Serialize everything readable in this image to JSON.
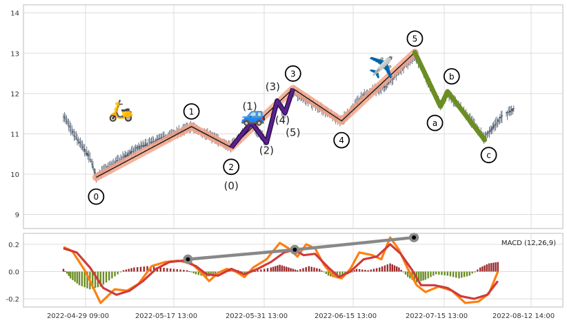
{
  "chart_data": [
    {
      "type": "candlestick",
      "panel": "price",
      "grid": true,
      "ylim": [
        8.65,
        14.2
      ],
      "y_ticks": [
        9,
        10,
        11,
        12,
        13,
        14
      ],
      "x_tick_labels": [
        "2022-04-29 09:00",
        "2022-05-17 13:00",
        "2022-05-31 13:00",
        "2022-06-15 13:00",
        "2022-07-15 13:00",
        "2022-08-12 14:00"
      ],
      "candle_color": "#475569",
      "elliott_wave": {
        "color": "#f4a58a",
        "points": [
          {
            "label": "0",
            "x": 0.12,
            "y": 9.92
          },
          {
            "label": "1",
            "x": 1.2,
            "y": 11.18
          },
          {
            "label": "2",
            "x": 1.65,
            "y": 10.66
          },
          {
            "label": "3",
            "x": 2.35,
            "y": 12.12
          },
          {
            "label": "4",
            "x": 2.9,
            "y": 11.32
          },
          {
            "label": "5",
            "x": 3.73,
            "y": 13.02
          }
        ]
      },
      "sub_wave": {
        "color": "#5b1f8f",
        "points": [
          {
            "label": "",
            "x": 1.65,
            "y": 10.66
          },
          {
            "label": "(1)",
            "x": 1.88,
            "y": 11.28
          },
          {
            "label": "(2)",
            "x": 2.05,
            "y": 10.78
          },
          {
            "label": "(3)",
            "x": 2.17,
            "y": 11.82
          },
          {
            "label": "(4)",
            "x": 2.26,
            "y": 11.52
          },
          {
            "label": "(5)",
            "x": 2.35,
            "y": 12.12
          }
        ]
      },
      "correction_wave": {
        "color": "#6b8e23",
        "points": [
          {
            "label": "5",
            "x": 3.73,
            "y": 13.02
          },
          {
            "label": "a",
            "x": 4.02,
            "y": 11.68
          },
          {
            "label": "b",
            "x": 4.1,
            "y": 12.05
          },
          {
            "label": "c",
            "x": 4.52,
            "y": 10.85
          }
        ]
      },
      "icons": [
        {
          "name": "scooter",
          "glyph": "🛵",
          "x": 0.4,
          "y": 11.55
        },
        {
          "name": "car",
          "glyph": "🚙",
          "x": 1.9,
          "y": 11.45
        },
        {
          "name": "airplane",
          "glyph": "✈️",
          "x": 3.35,
          "y": 12.62
        }
      ]
    },
    {
      "type": "macd",
      "panel": "indicator",
      "legend": "MACD (12,26,9)",
      "legend_position": "top-right",
      "grid": true,
      "ylim": [
        -0.26,
        0.28
      ],
      "y_ticks": [
        -0.2,
        0.0,
        0.2
      ],
      "macd_line": {
        "color": "#ff7f0e",
        "points": [
          [
            0,
            0.18
          ],
          [
            0.1,
            0.15
          ],
          [
            0.25,
            0.0
          ],
          [
            0.42,
            -0.23
          ],
          [
            0.58,
            -0.13
          ],
          [
            0.72,
            -0.14
          ],
          [
            0.85,
            -0.09
          ],
          [
            1.0,
            0.04
          ],
          [
            1.15,
            0.07
          ],
          [
            1.3,
            0.08
          ],
          [
            1.45,
            0.06
          ],
          [
            1.55,
            0.0
          ],
          [
            1.65,
            -0.07
          ],
          [
            1.75,
            -0.01
          ],
          [
            1.85,
            0.02
          ],
          [
            1.95,
            0.0
          ],
          [
            2.05,
            -0.04
          ],
          [
            2.15,
            0.03
          ],
          [
            2.3,
            0.09
          ],
          [
            2.45,
            0.21
          ],
          [
            2.55,
            0.17
          ],
          [
            2.65,
            0.11
          ],
          [
            2.75,
            0.2
          ],
          [
            2.85,
            0.17
          ],
          [
            2.95,
            0.05
          ],
          [
            3.05,
            -0.03
          ],
          [
            3.15,
            -0.05
          ],
          [
            3.25,
            0.02
          ],
          [
            3.35,
            0.14
          ],
          [
            3.5,
            0.12
          ],
          [
            3.6,
            0.09
          ],
          [
            3.7,
            0.25
          ],
          [
            3.8,
            0.16
          ],
          [
            3.9,
            0.02
          ],
          [
            4.0,
            -0.1
          ],
          [
            4.1,
            -0.15
          ],
          [
            4.25,
            -0.11
          ],
          [
            4.4,
            -0.14
          ],
          [
            4.55,
            -0.23
          ],
          [
            4.7,
            -0.22
          ],
          [
            4.82,
            -0.16
          ],
          [
            4.92,
            0.0
          ]
        ]
      },
      "signal_line": {
        "color": "#d03a3a",
        "points": [
          [
            0,
            0.17
          ],
          [
            0.15,
            0.14
          ],
          [
            0.3,
            0.03
          ],
          [
            0.45,
            -0.12
          ],
          [
            0.6,
            -0.17
          ],
          [
            0.75,
            -0.14
          ],
          [
            0.9,
            -0.07
          ],
          [
            1.05,
            0.02
          ],
          [
            1.2,
            0.07
          ],
          [
            1.35,
            0.08
          ],
          [
            1.5,
            0.04
          ],
          [
            1.62,
            -0.02
          ],
          [
            1.75,
            -0.03
          ],
          [
            1.9,
            0.02
          ],
          [
            2.05,
            -0.02
          ],
          [
            2.2,
            0.02
          ],
          [
            2.35,
            0.07
          ],
          [
            2.5,
            0.14
          ],
          [
            2.62,
            0.16
          ],
          [
            2.72,
            0.12
          ],
          [
            2.85,
            0.13
          ],
          [
            3.0,
            0.03
          ],
          [
            3.12,
            -0.04
          ],
          [
            3.25,
            0.0
          ],
          [
            3.4,
            0.09
          ],
          [
            3.55,
            0.11
          ],
          [
            3.7,
            0.2
          ],
          [
            3.82,
            0.13
          ],
          [
            3.95,
            0.01
          ],
          [
            4.05,
            -0.1
          ],
          [
            4.2,
            -0.1
          ],
          [
            4.35,
            -0.12
          ],
          [
            4.5,
            -0.18
          ],
          [
            4.65,
            -0.2
          ],
          [
            4.8,
            -0.17
          ],
          [
            4.92,
            -0.07
          ]
        ]
      },
      "histogram": {
        "positive_color": "#9b2a2a",
        "negative_color": "#6b8e23",
        "segments": [
          [
            0.0,
            0.02
          ],
          [
            0.08,
            -0.05
          ],
          [
            0.18,
            -0.1
          ],
          [
            0.3,
            -0.13
          ],
          [
            0.42,
            -0.11
          ],
          [
            0.55,
            -0.05
          ],
          [
            0.68,
            0.01
          ],
          [
            0.8,
            0.03
          ],
          [
            0.95,
            0.04
          ],
          [
            1.1,
            0.03
          ],
          [
            1.25,
            0.02
          ],
          [
            1.4,
            0.01
          ],
          [
            1.5,
            -0.02
          ],
          [
            1.62,
            -0.04
          ],
          [
            1.72,
            -0.02
          ],
          [
            1.85,
            0.02
          ],
          [
            1.98,
            0.01
          ],
          [
            2.08,
            -0.02
          ],
          [
            2.2,
            0.01
          ],
          [
            2.35,
            0.03
          ],
          [
            2.45,
            0.05
          ],
          [
            2.55,
            0.03
          ],
          [
            2.65,
            0.01
          ],
          [
            2.78,
            0.04
          ],
          [
            2.9,
            0.02
          ],
          [
            3.0,
            -0.03
          ],
          [
            3.1,
            -0.05
          ],
          [
            3.22,
            -0.02
          ],
          [
            3.32,
            0.02
          ],
          [
            3.45,
            0.01
          ],
          [
            3.58,
            0.03
          ],
          [
            3.7,
            0.06
          ],
          [
            3.8,
            0.03
          ],
          [
            3.9,
            -0.04
          ],
          [
            4.0,
            -0.08
          ],
          [
            4.1,
            -0.06
          ],
          [
            4.22,
            -0.02
          ],
          [
            4.35,
            -0.03
          ],
          [
            4.48,
            -0.05
          ],
          [
            4.6,
            -0.03
          ],
          [
            4.72,
            0.03
          ],
          [
            4.82,
            0.06
          ],
          [
            4.92,
            0.07
          ]
        ]
      },
      "divergence_line": {
        "color": "#888888",
        "points": [
          [
            1.16,
            0.09
          ],
          [
            2.37,
            0.16
          ],
          [
            3.72,
            0.25
          ]
        ]
      }
    }
  ]
}
